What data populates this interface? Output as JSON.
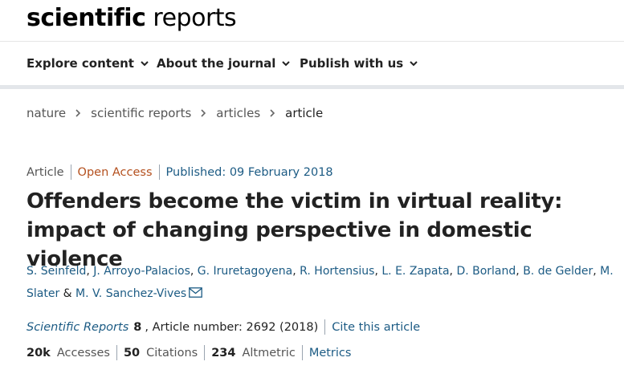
{
  "brand": {
    "logo_bold": "scientific",
    "logo_light": " reports"
  },
  "nav": {
    "items": [
      {
        "label": "Explore content"
      },
      {
        "label": "About the journal"
      },
      {
        "label": "Publish with us"
      }
    ]
  },
  "breadcrumb": [
    "nature",
    "scientific reports",
    "articles",
    "article"
  ],
  "article": {
    "type": "Article",
    "access": "Open Access",
    "published": "Published: 09 February 2018",
    "title": "Offenders become the victim in virtual reality: impact of changing perspective in domestic violence",
    "authors": [
      "S. Seinfeld",
      "J. Arroyo-Palacios",
      "G. Iruretagoyena",
      "R. Hortensius",
      "L. E. Zapata",
      "D. Borland",
      "B. de Gelder",
      "M. Slater",
      "M. V. Sanchez-Vives"
    ],
    "author_sep": ",",
    "author_and": "&",
    "journal": "Scientific Reports",
    "volume": "8",
    "article_number": ", Article number: 2692 (2018)",
    "cite_link": "Cite this article"
  },
  "metrics": {
    "accesses_value": "20k",
    "accesses_label": "Accesses",
    "citations_value": "50",
    "citations_label": "Citations",
    "altmetric_value": "234",
    "altmetric_label": "Altmetric",
    "metrics_link": "Metrics"
  },
  "colors": {
    "link": "#1c5b84",
    "open_access": "#b4501e",
    "text": "#222222",
    "muted": "#555555"
  },
  "icons": {
    "nav_chevron": "chevron-down-icon",
    "breadcrumb_separator": "chevron-right-icon",
    "corresponding_author": "mail-icon"
  }
}
